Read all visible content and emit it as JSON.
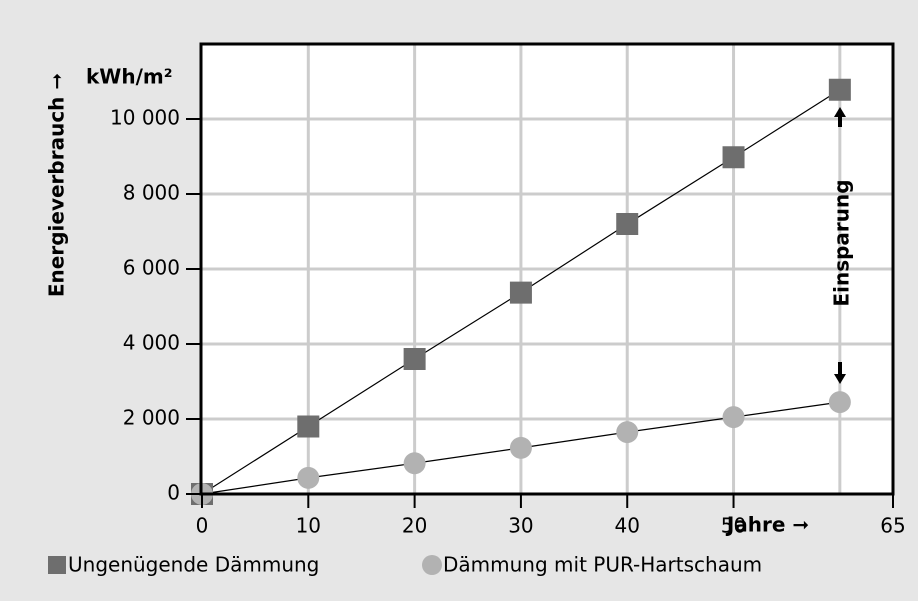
{
  "chart_data": {
    "type": "line",
    "y_label": "Energieverbrauch ➞",
    "y_unit": "kWh/m²",
    "x_label": "Jahre ➞",
    "annotation": "Einsparung",
    "x": [
      0,
      10,
      20,
      30,
      40,
      50,
      60
    ],
    "series": [
      {
        "name": "Ungenügende Dämmung",
        "color": "#6e6e6e",
        "marker": "square",
        "values": [
          0,
          1800,
          3600,
          5370,
          7200,
          8980,
          10780
        ]
      },
      {
        "name": "Dämmung mit PUR-Hartschaum",
        "color": "#b2b2b2",
        "marker": "circle",
        "values": [
          0,
          430,
          820,
          1230,
          1650,
          2050,
          2450
        ]
      }
    ],
    "xlim": [
      0,
      65
    ],
    "xticks": [
      0,
      10,
      20,
      30,
      40,
      50,
      65
    ],
    "xgrid": [
      10,
      20,
      30,
      40,
      50,
      60
    ],
    "ylim": [
      0,
      12000
    ],
    "yticks": [
      0,
      {
        "value": 2000,
        "label": "2 000"
      },
      {
        "value": 4000,
        "label": "4 000"
      },
      {
        "value": 6000,
        "label": "6 000"
      },
      {
        "value": 8000,
        "label": "8 000"
      },
      {
        "value": 10000,
        "label": "10 000"
      }
    ],
    "grid": true
  }
}
